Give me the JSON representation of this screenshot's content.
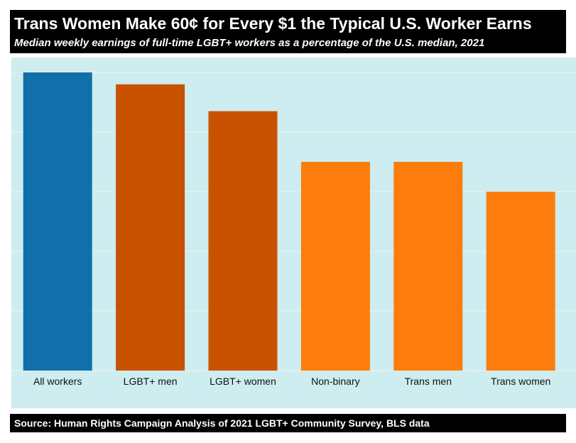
{
  "chart_data": {
    "type": "bar",
    "title": "Trans Women Make 60¢ for Every $1 the Typical U.S. Worker Earns",
    "subtitle": "Median weekly earnings of full-time LGBT+ workers as a percentage of the U.S. median, 2021",
    "categories": [
      "All workers",
      "LGBT+ men",
      "LGBT+ women",
      "Non-binary",
      "Trans men",
      "Trans women"
    ],
    "values": [
      100,
      96,
      87,
      70,
      70,
      60
    ],
    "colors": [
      "#1170aa",
      "#c85200",
      "#c85200",
      "#fc7d0b",
      "#fc7d0b",
      "#fc7d0b"
    ],
    "ylim": [
      0,
      100
    ],
    "grid": true,
    "y_tick_labels_shown": false,
    "legend": "none",
    "background_color": "#cdedf0",
    "source": "Source: Human Rights Campaign Analysis of 2021 LGBT+ Community Survey, BLS data"
  }
}
